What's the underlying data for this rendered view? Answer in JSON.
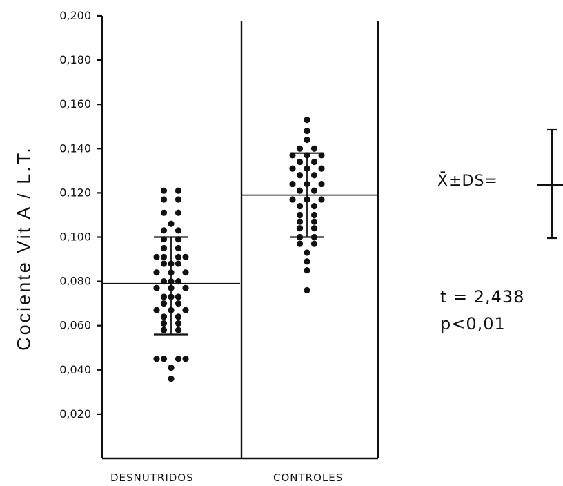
{
  "chart_data": {
    "type": "scatter",
    "ylabel": "Cociente Vit A / L.T.",
    "xlabel": "",
    "ylim": [
      0,
      0.2
    ],
    "yticks": [
      "0,020",
      "0,040",
      "0,060",
      "0,080",
      "0,100",
      "0,120",
      "0,140",
      "0,160",
      "0,180",
      "0,200"
    ],
    "ytick_values": [
      0.02,
      0.04,
      0.06,
      0.08,
      0.1,
      0.12,
      0.14,
      0.16,
      0.18,
      0.2
    ],
    "categories": [
      "DESNUTRIDOS",
      "CONTROLES"
    ],
    "series": [
      {
        "category": "DESNUTRIDOS",
        "mean": 0.079,
        "mean_plus_sd": 0.1,
        "mean_minus_sd": 0.056,
        "values": [
          0.121,
          0.121,
          0.117,
          0.117,
          0.111,
          0.111,
          0.106,
          0.103,
          0.103,
          0.099,
          0.099,
          0.095,
          0.095,
          0.091,
          0.091,
          0.091,
          0.091,
          0.088,
          0.088,
          0.088,
          0.084,
          0.084,
          0.084,
          0.08,
          0.08,
          0.08,
          0.077,
          0.077,
          0.077,
          0.073,
          0.073,
          0.073,
          0.07,
          0.07,
          0.067,
          0.067,
          0.067,
          0.064,
          0.064,
          0.061,
          0.061,
          0.058,
          0.058,
          0.045,
          0.045,
          0.045,
          0.045,
          0.041,
          0.036
        ],
        "offsets": [
          -1,
          1,
          -1,
          1,
          -1,
          1,
          0,
          -1,
          1,
          -1,
          1,
          -1,
          1,
          -2,
          -1,
          1,
          2,
          -1,
          0,
          1,
          -2,
          0,
          2,
          -1,
          0,
          1,
          -2,
          0,
          2,
          -1,
          0,
          1,
          -1,
          1,
          -2,
          0,
          2,
          -1,
          1,
          -1,
          1,
          -1,
          1,
          -2,
          -1,
          1,
          2,
          0,
          0
        ]
      },
      {
        "category": "CONTROLES",
        "mean": 0.119,
        "mean_plus_sd": 0.138,
        "mean_minus_sd": 0.1,
        "values": [
          0.153,
          0.148,
          0.144,
          0.14,
          0.14,
          0.137,
          0.137,
          0.137,
          0.134,
          0.134,
          0.131,
          0.131,
          0.131,
          0.128,
          0.128,
          0.124,
          0.124,
          0.124,
          0.121,
          0.121,
          0.117,
          0.117,
          0.117,
          0.114,
          0.114,
          0.11,
          0.11,
          0.107,
          0.107,
          0.104,
          0.104,
          0.1,
          0.1,
          0.097,
          0.097,
          0.093,
          0.089,
          0.085,
          0.076
        ],
        "offsets": [
          0,
          0,
          0,
          -1,
          1,
          -2,
          0,
          2,
          -1,
          1,
          -2,
          0,
          2,
          -1,
          1,
          -2,
          0,
          2,
          -1,
          1,
          -2,
          0,
          2,
          -1,
          1,
          -1,
          1,
          -1,
          1,
          -1,
          1,
          -1,
          1,
          -1,
          1,
          0,
          0,
          0,
          0
        ]
      }
    ],
    "legend_label": "X̄±DS=",
    "annotations": [
      "t = 2,438",
      "p<0,01"
    ]
  }
}
